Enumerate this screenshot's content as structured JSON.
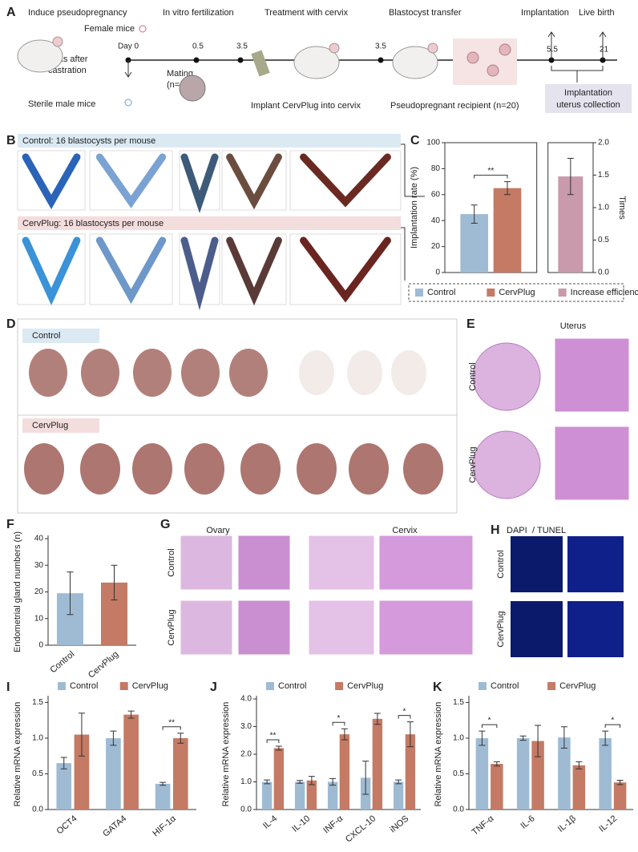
{
  "panel_labels": [
    "A",
    "B",
    "C",
    "D",
    "E",
    "F",
    "G",
    "H",
    "I",
    "J",
    "K"
  ],
  "panel_a": {
    "steps": [
      "Induce pseudopregnancy",
      "In vitro fertilization",
      "Treatment with cervix",
      "Blastocyst transfer",
      "Implantation",
      "Live birth"
    ],
    "female": "Female mice",
    "castration": [
      "2 weeks after",
      "castration"
    ],
    "male": "Sterile male mice",
    "mating": [
      "Mating",
      "(n=40)"
    ],
    "implant": "Implant CervPlug into cervix",
    "recipient": "Pseudopregnant recipient (n=20)",
    "collection": [
      "Implantation",
      "uterus collection"
    ],
    "days": [
      "Day 0",
      "0.5",
      "3.5",
      "3.5",
      "5.5",
      "21"
    ]
  },
  "panel_b": {
    "control": "Control: 16 blastocysts per mouse",
    "cervplug": "CervPlug: 16 blastocysts per mouse"
  },
  "panel_d": {
    "control": "Control",
    "cervplug": "CervPlug"
  },
  "panel_e": {
    "title": "Uterus",
    "rows": [
      "Control",
      "CervPlug"
    ]
  },
  "panel_g": {
    "columns": [
      "Ovary",
      "Cervix"
    ],
    "rows": [
      "Control",
      "CervPlug"
    ]
  },
  "panel_h": {
    "title": [
      "DAPI",
      "/",
      "TUNEL"
    ],
    "rows": [
      "Control",
      "CervPlug"
    ]
  },
  "chart_data": [
    {
      "type": "bar",
      "ylabel": "Implantation rate (%)",
      "y2label": "Times",
      "frame": true,
      "categories": [
        null
      ],
      "series": [
        {
          "name": "Control",
          "color": "#9fbbd4",
          "values": [
            45
          ],
          "errors": [
            7
          ]
        },
        {
          "name": "CervPlug",
          "color": "#c47a64",
          "values": [
            65
          ],
          "errors": [
            5
          ]
        },
        {
          "name": "Increase efficiency",
          "color": "#c89aab",
          "values": [
            1.48
          ],
          "errors": [
            0.28
          ],
          "axis": "y2"
        }
      ],
      "significance": [
        "**"
      ],
      "ylim": [
        0,
        100
      ],
      "yticks": [
        0,
        20,
        40,
        60,
        80,
        100
      ],
      "y2lim": [
        0,
        2
      ],
      "y2ticks": [
        {
          "value": 0,
          "label": "0.0"
        },
        {
          "value": 0.5,
          "label": "0.5"
        },
        {
          "value": 1,
          "label": "1.0"
        },
        {
          "value": 1.5,
          "label": "1.5"
        },
        {
          "value": 2,
          "label": "2.0"
        }
      ],
      "legend": "bottom"
    },
    {
      "type": "bar",
      "ylabel": "Endometrial gland numbers (n)",
      "categories": [
        "Control",
        "CervPlug"
      ],
      "values": [
        19.5,
        23.5
      ],
      "errors": [
        8,
        6.5
      ],
      "colors": [
        "#9fbbd4",
        "#c47a64"
      ],
      "ylim": [
        0,
        40
      ],
      "yticks": [
        0,
        10,
        20,
        30,
        40
      ]
    },
    {
      "type": "bar",
      "ylabel": "Relative mRNA expression",
      "categories": [
        "OCT4",
        "GATA4",
        "HIF-1α"
      ],
      "series": [
        {
          "name": "Control",
          "color": "#9fbbd4",
          "values": [
            0.65,
            1.0,
            0.36
          ],
          "errors": [
            0.08,
            0.1,
            0.02
          ]
        },
        {
          "name": "CervPlug",
          "color": "#c47a64",
          "values": [
            1.05,
            1.33,
            1.0
          ],
          "errors": [
            0.3,
            0.05,
            0.07
          ]
        }
      ],
      "significance": [
        null,
        null,
        "**"
      ],
      "ylim": [
        0,
        1.55
      ],
      "yticks": [
        {
          "value": 0,
          "label": "0.0"
        },
        {
          "value": 0.5,
          "label": "0.5"
        },
        {
          "value": 1,
          "label": "1.0"
        },
        {
          "value": 1.5,
          "label": "1.5"
        }
      ],
      "legend": "top"
    },
    {
      "type": "bar",
      "ylabel": "Relative mRNA expression",
      "categories": [
        "IL-4",
        "IL-10",
        "INF-α",
        "CXCL-10",
        "iNOS"
      ],
      "series": [
        {
          "name": "Control",
          "color": "#9fbbd4",
          "values": [
            1.0,
            1.0,
            1.0,
            1.15,
            1.0
          ],
          "errors": [
            0.07,
            0.05,
            0.12,
            0.6,
            0.07
          ]
        },
        {
          "name": "CervPlug",
          "color": "#c47a64",
          "values": [
            2.22,
            1.05,
            2.72,
            3.28,
            2.72
          ],
          "errors": [
            0.07,
            0.15,
            0.2,
            0.2,
            0.45
          ]
        }
      ],
      "significance": [
        "**",
        null,
        "*",
        null,
        "*"
      ],
      "ylim": [
        0,
        4
      ],
      "yticks": [
        {
          "value": 0,
          "label": "0.0"
        },
        {
          "value": 1,
          "label": "1.0"
        },
        {
          "value": 2,
          "label": "2.0"
        },
        {
          "value": 3,
          "label": "3.0"
        },
        {
          "value": 4,
          "label": "4.0"
        }
      ],
      "legend": "top"
    },
    {
      "type": "bar",
      "ylabel": "Relative mRNA expression",
      "categories": [
        "TNF-α",
        "IL-6",
        "IL-1β",
        "IL-12"
      ],
      "series": [
        {
          "name": "Control",
          "color": "#9fbbd4",
          "values": [
            1.0,
            1.0,
            1.01,
            1.0
          ],
          "errors": [
            0.1,
            0.03,
            0.15,
            0.1
          ]
        },
        {
          "name": "CervPlug",
          "color": "#c47a64",
          "values": [
            0.64,
            0.96,
            0.62,
            0.38
          ],
          "errors": [
            0.03,
            0.22,
            0.05,
            0.03
          ]
        }
      ],
      "significance": [
        "*",
        null,
        null,
        "*"
      ],
      "ylim": [
        0,
        1.55
      ],
      "yticks": [
        {
          "value": 0,
          "label": "0.0"
        },
        {
          "value": 0.5,
          "label": "0.5"
        },
        {
          "value": 1,
          "label": "1.0"
        },
        {
          "value": 1.5,
          "label": "1.5"
        }
      ],
      "legend": "top"
    }
  ]
}
